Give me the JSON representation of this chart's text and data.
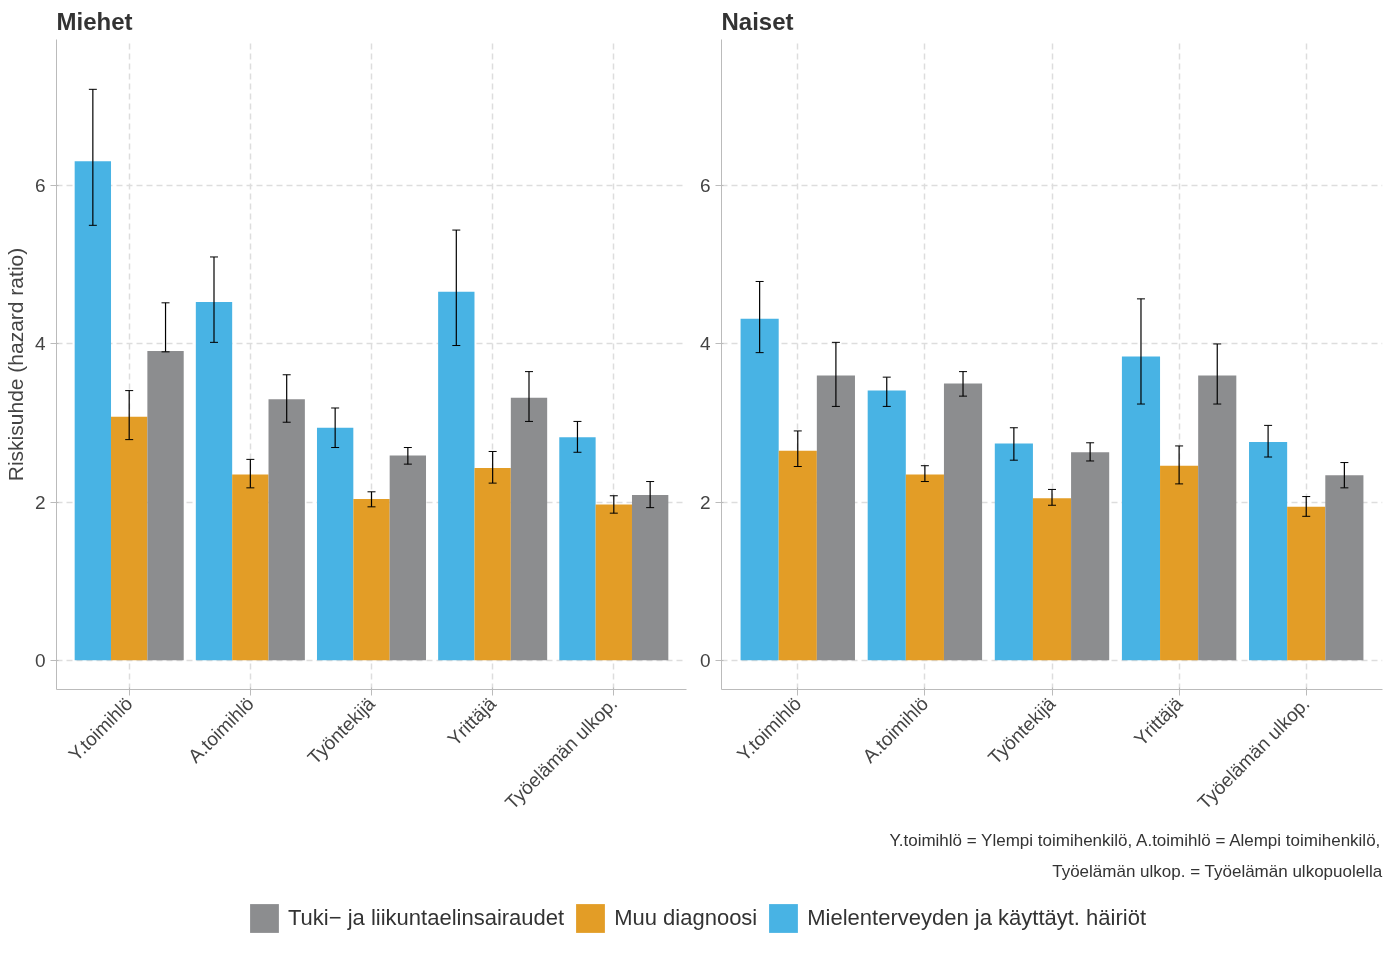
{
  "chart_data": [
    {
      "type": "bar",
      "title": "Miehet",
      "ylabel": "Riskisuhde (hazard ratio)",
      "categories": [
        "Y.toimihlö",
        "A.toimihlö",
        "Työntekijä",
        "Yrittäjä",
        "Työelämän ulkop."
      ],
      "series": [
        {
          "name": "Mielenterveyden ja käyttäyt. häiriöt",
          "color": "#48b3e4",
          "values": [
            6.31,
            4.53,
            2.94,
            4.66,
            2.82
          ],
          "errors": [
            [
              5.5,
              7.22
            ],
            [
              4.02,
              5.1
            ],
            [
              2.69,
              3.19
            ],
            [
              3.98,
              5.44
            ],
            [
              2.63,
              3.02
            ]
          ]
        },
        {
          "name": "Muu diagnoosi",
          "color": "#e39d26",
          "values": [
            3.08,
            2.35,
            2.04,
            2.43,
            1.97
          ],
          "errors": [
            [
              2.79,
              3.41
            ],
            [
              2.18,
              2.54
            ],
            [
              1.94,
              2.13
            ],
            [
              2.24,
              2.64
            ],
            [
              1.86,
              2.08
            ]
          ]
        },
        {
          "name": "Tuki− ja liikuntaelinsairaudet",
          "color": "#8c8d8f",
          "values": [
            3.91,
            3.3,
            2.59,
            3.32,
            2.09
          ],
          "errors": [
            [
              3.9,
              4.52
            ],
            [
              3.01,
              3.61
            ],
            [
              2.48,
              2.69
            ],
            [
              3.02,
              3.65
            ],
            [
              1.93,
              2.26
            ]
          ]
        }
      ],
      "ylim": [
        -0.37,
        7.85
      ],
      "yticks": [
        0,
        2,
        4,
        6
      ],
      "grid": true,
      "legend": "bottom"
    },
    {
      "type": "bar",
      "title": "Naiset",
      "categories": [
        "Y.toimihlö",
        "A.toimihlö",
        "Työntekijä",
        "Yrittäjä",
        "Työelämän ulkop."
      ],
      "series": [
        {
          "color": "#48b3e4",
          "values": [
            4.32,
            3.41,
            2.74,
            3.84,
            2.76
          ],
          "errors": [
            [
              3.89,
              4.79
            ],
            [
              3.21,
              3.58
            ],
            [
              2.53,
              2.94
            ],
            [
              3.24,
              4.57
            ],
            [
              2.57,
              2.97
            ]
          ]
        },
        {
          "color": "#e39d26",
          "values": [
            2.65,
            2.35,
            2.05,
            2.46,
            1.94
          ],
          "errors": [
            [
              2.45,
              2.9
            ],
            [
              2.26,
              2.46
            ],
            [
              1.96,
              2.16
            ],
            [
              2.23,
              2.71
            ],
            [
              1.82,
              2.07
            ]
          ]
        },
        {
          "color": "#8c8d8f",
          "values": [
            3.6,
            3.5,
            2.63,
            3.6,
            2.34
          ],
          "errors": [
            [
              3.21,
              4.02
            ],
            [
              3.34,
              3.65
            ],
            [
              2.52,
              2.75
            ],
            [
              3.24,
              4.0
            ],
            [
              2.18,
              2.5
            ]
          ]
        }
      ],
      "ylim": [
        -0.37,
        7.85
      ],
      "yticks": [
        0,
        2,
        4,
        6
      ],
      "grid": true,
      "annotations": [
        "Y.toimihlö = Ylempi toimihenkilö, A.toimihlö = Alempi toimihenkilö,",
        "Työelämän ulkop. = Työelämän ulkopuolella"
      ]
    }
  ]
}
